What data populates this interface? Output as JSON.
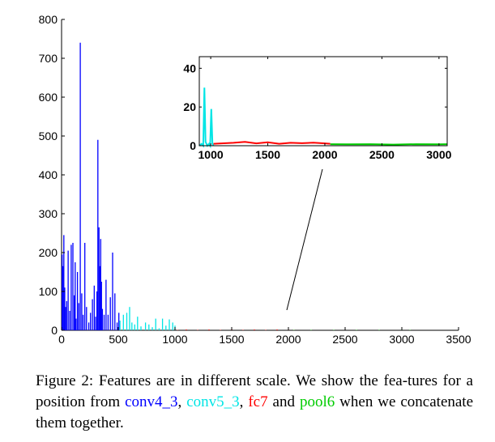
{
  "chart_data": [
    {
      "type": "bar",
      "title": "",
      "xlabel": "",
      "ylabel": "",
      "xlim": [
        0,
        3500
      ],
      "ylim": [
        0,
        800
      ],
      "xticks": [
        "0",
        "500",
        "1000",
        "1500",
        "2000",
        "2500",
        "3000",
        "3500"
      ],
      "yticks": [
        "0",
        "100",
        "200",
        "300",
        "400",
        "500",
        "600",
        "700",
        "800"
      ],
      "grid": false,
      "series": [
        {
          "name": "conv4_3",
          "color": "#0000ff",
          "x": [
            5,
            12,
            20,
            28,
            35,
            45,
            58,
            72,
            85,
            100,
            112,
            120,
            128,
            140,
            152,
            165,
            178,
            190,
            205,
            220,
            240,
            255,
            272,
            288,
            300,
            312,
            320,
            330,
            338,
            345,
            352,
            360,
            375,
            392,
            410,
            430,
            450,
            470,
            490,
            505
          ],
          "values": [
            195,
            165,
            245,
            110,
            60,
            75,
            205,
            50,
            220,
            225,
            90,
            175,
            30,
            150,
            70,
            740,
            95,
            40,
            225,
            60,
            20,
            45,
            80,
            115,
            35,
            100,
            490,
            265,
            165,
            235,
            125,
            55,
            40,
            130,
            40,
            85,
            200,
            95,
            20,
            45
          ]
        },
        {
          "name": "conv5_3",
          "color": "#00e5e5",
          "x": [
            515,
            545,
            575,
            600,
            620,
            645,
            670,
            700,
            740,
            770,
            800,
            830,
            860,
            890,
            920,
            950,
            980,
            1000
          ],
          "values": [
            25,
            40,
            45,
            60,
            20,
            15,
            35,
            10,
            20,
            15,
            8,
            30,
            5,
            30,
            12,
            28,
            20,
            12
          ]
        },
        {
          "name": "fc7",
          "color": "#ff0000",
          "x": [
            1024,
            1100,
            1200,
            1300,
            1400,
            1500,
            1600,
            1700,
            1800,
            1900,
            2000,
            2048
          ],
          "values": [
            1,
            2,
            1,
            2,
            1,
            2,
            1,
            2,
            1,
            2,
            1,
            1
          ]
        },
        {
          "name": "pool6",
          "color": "#00cc00",
          "x": [
            2048,
            2200,
            2400,
            2600,
            2800,
            3000,
            3072
          ],
          "values": [
            1,
            1,
            1,
            1,
            1,
            1,
            1
          ]
        }
      ]
    },
    {
      "type": "line",
      "title": "",
      "xlabel": "",
      "ylabel": "",
      "xlim": [
        900,
        3072
      ],
      "ylim": [
        0,
        46
      ],
      "xticks": [
        "1000",
        "1500",
        "2000",
        "2500",
        "3000"
      ],
      "yticks": [
        "0",
        "20",
        "40"
      ],
      "grid": false,
      "series": [
        {
          "name": "conv5_3",
          "color": "#00e5e5",
          "x": [
            900,
            920,
            935,
            945,
            955,
            970,
            985,
            995,
            1005,
            1015,
            1024
          ],
          "y": [
            0,
            1,
            0,
            30,
            2,
            0,
            1,
            0,
            19,
            1,
            0
          ]
        },
        {
          "name": "fc7",
          "color": "#ff0000",
          "x": [
            1024,
            1200,
            1300,
            1400,
            1500,
            1600,
            1700,
            1800,
            1900,
            2000,
            2048
          ],
          "y": [
            1,
            1.5,
            2,
            1.2,
            1.8,
            1,
            1.5,
            1.3,
            1.6,
            1.2,
            1
          ]
        },
        {
          "name": "pool6",
          "color": "#00cc00",
          "x": [
            2048,
            2200,
            2400,
            2600,
            2800,
            3000,
            3072
          ],
          "y": [
            0.8,
            0.7,
            0.8,
            0.6,
            0.8,
            0.7,
            0.8
          ]
        }
      ]
    }
  ],
  "caption": {
    "text1": "Figure 2: Features are in different scale. We show the fea-tures for a position from ",
    "conv4": "conv4_3",
    "sep1": ", ",
    "conv5": "conv5_3",
    "sep2": ", ",
    "fc7": "fc7",
    "sep3": " and ",
    "pool6": "pool6",
    "text2": " when we concatenate them together."
  }
}
